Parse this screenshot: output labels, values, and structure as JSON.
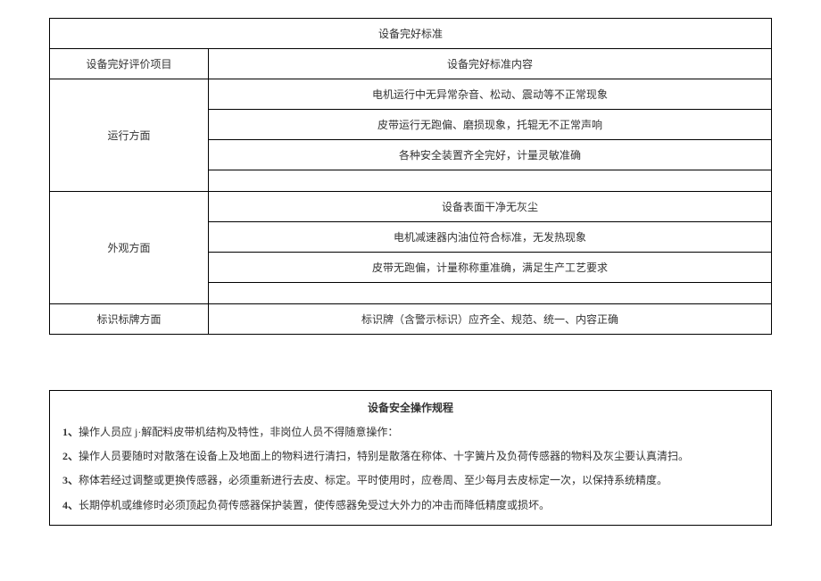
{
  "table1": {
    "title": "设备完好标准",
    "header_left": "设备完好评价项目",
    "header_right": "设备完好标准内容",
    "sections": [
      {
        "category": "运行方面",
        "items": [
          "电机运行中无异常杂音、松动、震动等不正常现象",
          "皮带运行无跑偏、磨损现象，托辊无不正常声响",
          "各种安全装置齐全完好，计量灵敏准确",
          ""
        ]
      },
      {
        "category": "外观方面",
        "items": [
          "设备表面干净无灰尘",
          "电机减速器内油位符合标准，无发热现象",
          "皮带无跑偏，计量称称重准确，满足生产工艺要求",
          ""
        ]
      },
      {
        "category": "标识标牌方面",
        "items": [
          "标识牌（含警示标识）应齐全、规范、统一、内容正确"
        ]
      }
    ]
  },
  "section2": {
    "title": "设备安全操作规程",
    "rules": [
      {
        "num": "1、",
        "text": "操作人员应 j·解配料皮带机结构及特性，非岗位人员不得随意操作："
      },
      {
        "num": "2、",
        "text": "操作人员要随时对散落在设备上及地面上的物料进行清扫，特别是散落在称体、十字簧片及负荷传感器的物料及灰尘要认真清扫。"
      },
      {
        "num": "3、",
        "text": "称体若经过调整或更换传感器，必须重新进行去皮、标定。平时使用时，应卷周、至少每月去皮标定一次，以保持系统精度。"
      },
      {
        "num": "4、",
        "text": "长期停机或维修时必须顶起负荷传感器保护装置，使传感器免受过大外力的冲击而降低精度或损坏。"
      }
    ]
  },
  "styles": {
    "border_color": "#000000",
    "background_color": "#ffffff",
    "text_color": "#333333",
    "font_size_body": 12,
    "font_family": "SimSun"
  }
}
